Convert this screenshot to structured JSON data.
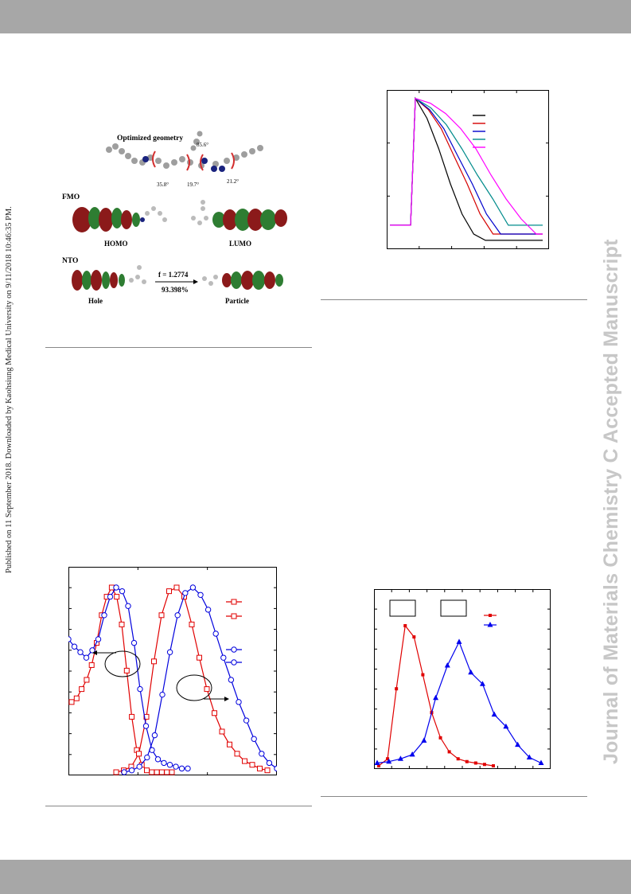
{
  "page": {
    "sidebar_text": "Published on 11 September 2018. Downloaded by Kaohsiung Medical University on 9/11/2018 10:46:35 PM.",
    "watermark_text": "Journal of Materials Chemistry C Accepted Manuscript",
    "band_color": "#a7a7a7",
    "watermark_color": "#c7c7c7"
  },
  "figure_molecule": {
    "title": "Optimized geometry",
    "angles": [
      "85.6°",
      "35.8°",
      "19.7°",
      "21.2°"
    ],
    "fmo_label": "FMO",
    "homo_label": "HOMO",
    "lumo_label": "LUMO",
    "nto_label": "NTO",
    "hole_label": "Hole",
    "particle_label": "Particle",
    "osc_strength": "f = 1.2774",
    "contribution": "93.398%",
    "lobe_colors": [
      "#8b1a1a",
      "#2e7d32"
    ]
  },
  "chart_data": [
    {
      "id": "decay",
      "type": "line",
      "yscale": "log",
      "grid": false,
      "legend_placement": "top-right",
      "legend_entries_count": 5,
      "series": [
        {
          "color": "#000000",
          "y": [
            0.003,
            1.0,
            0.4,
            0.1,
            0.02,
            0.005,
            0.002,
            0.0015
          ]
        },
        {
          "color": "#d50000",
          "y": [
            0.003,
            1.0,
            0.6,
            0.25,
            0.07,
            0.02,
            0.005,
            0.002
          ]
        },
        {
          "color": "#0000cc",
          "y": [
            0.003,
            1.0,
            0.6,
            0.25,
            0.07,
            0.02,
            0.005,
            0.002
          ]
        },
        {
          "color": "#008b8b",
          "y": [
            0.003,
            1.0,
            0.65,
            0.3,
            0.1,
            0.03,
            0.01,
            0.003
          ]
        },
        {
          "color": "#ff00ff",
          "y": [
            0.003,
            1.0,
            0.8,
            0.5,
            0.25,
            0.1,
            0.03,
            0.01,
            0.004,
            0.002
          ]
        }
      ]
    },
    {
      "id": "abs_pl",
      "type": "line",
      "grid": false,
      "legend_placement": "top-right",
      "legend_entries_count": 4,
      "series": [
        {
          "color": "#e00000",
          "marker": "square",
          "axis": "left",
          "y": [
            0.38,
            0.4,
            0.45,
            0.5,
            0.58,
            0.7,
            0.85,
            0.95,
            1.0,
            0.95,
            0.8,
            0.55,
            0.3,
            0.12,
            0.04,
            0.01,
            0.0,
            0.0,
            0.0,
            0.0,
            0.0
          ]
        },
        {
          "color": "#e00000",
          "marker": "square",
          "axis": "right",
          "y": [
            0.0,
            0.01,
            0.03,
            0.1,
            0.3,
            0.6,
            0.85,
            0.98,
            1.0,
            0.95,
            0.8,
            0.62,
            0.45,
            0.32,
            0.22,
            0.15,
            0.1,
            0.06,
            0.04,
            0.02,
            0.01
          ]
        },
        {
          "color": "#0000dd",
          "marker": "circle",
          "axis": "left",
          "y": [
            0.72,
            0.68,
            0.65,
            0.62,
            0.66,
            0.72,
            0.85,
            0.95,
            1.0,
            0.98,
            0.9,
            0.7,
            0.45,
            0.25,
            0.12,
            0.07,
            0.05,
            0.04,
            0.03,
            0.02,
            0.02
          ]
        },
        {
          "color": "#0000dd",
          "marker": "circle",
          "axis": "right",
          "y": [
            0.0,
            0.01,
            0.03,
            0.08,
            0.2,
            0.42,
            0.65,
            0.85,
            0.97,
            1.0,
            0.96,
            0.88,
            0.75,
            0.62,
            0.5,
            0.38,
            0.28,
            0.18,
            0.1,
            0.05,
            0.02
          ]
        }
      ]
    },
    {
      "id": "el_spectra",
      "type": "line",
      "grid": false,
      "legend_placement": "top-right",
      "legend_entries_count": 2,
      "series": [
        {
          "color": "#e00000",
          "marker": "square",
          "y": [
            0.0,
            0.05,
            0.55,
            1.0,
            0.92,
            0.65,
            0.38,
            0.2,
            0.1,
            0.05,
            0.03,
            0.02,
            0.01,
            0.0
          ]
        },
        {
          "color": "#0000ee",
          "marker": "triangle",
          "y": [
            0.02,
            0.03,
            0.05,
            0.08,
            0.18,
            0.45,
            0.75,
            0.85,
            0.7,
            0.55,
            0.4,
            0.28,
            0.15,
            0.06,
            0.02
          ]
        }
      ]
    }
  ]
}
